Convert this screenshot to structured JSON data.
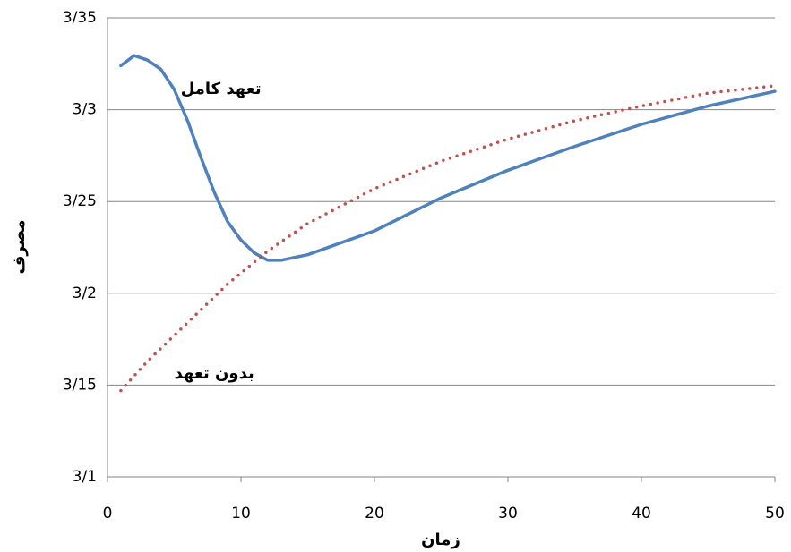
{
  "chart_data": {
    "type": "line",
    "x_label": "زمان",
    "y_label": "مصرف",
    "x": [
      1,
      2,
      3,
      4,
      5,
      6,
      7,
      8,
      9,
      10,
      11,
      12,
      13,
      15,
      20,
      25,
      30,
      35,
      40,
      45,
      50
    ],
    "series": [
      {
        "name": "تعهد کامل",
        "color": "#4f81bd",
        "style": "solid",
        "values": [
          3.324,
          3.3295,
          3.327,
          3.322,
          3.311,
          3.294,
          3.274,
          3.255,
          3.239,
          3.229,
          3.222,
          3.218,
          3.218,
          3.221,
          3.234,
          3.252,
          3.267,
          3.28,
          3.292,
          3.302,
          3.31
        ]
      },
      {
        "name": "بدون تعهد",
        "color": "#c0504d",
        "style": "dotted",
        "values": [
          3.147,
          3.155,
          3.163,
          3.17,
          3.177,
          3.184,
          3.191,
          3.198,
          3.205,
          3.211,
          3.217,
          3.223,
          3.228,
          3.238,
          3.257,
          3.272,
          3.284,
          3.294,
          3.302,
          3.309,
          3.313
        ]
      }
    ],
    "xlim": [
      0,
      50
    ],
    "xticks": [
      0,
      10,
      20,
      30,
      40,
      50
    ],
    "ylim": [
      3.1,
      3.35
    ],
    "yticks": [
      {
        "value": 3.1,
        "label": "3/1"
      },
      {
        "value": 3.15,
        "label": "3/15"
      },
      {
        "value": 3.2,
        "label": "3/2"
      },
      {
        "value": 3.25,
        "label": "3/25"
      },
      {
        "value": 3.3,
        "label": "3/3"
      },
      {
        "value": 3.35,
        "label": "3/35"
      }
    ],
    "grid": true
  }
}
